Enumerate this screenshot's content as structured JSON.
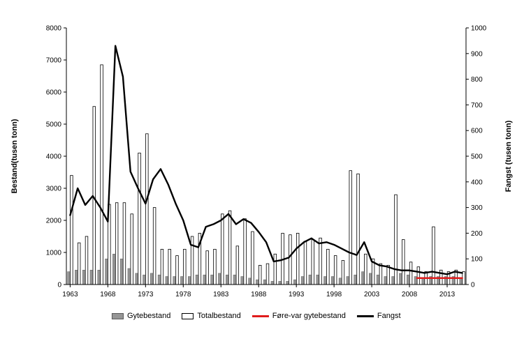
{
  "chart_data": {
    "type": "bar+line",
    "title": "",
    "ylabel_left": "Bestand(tusen tonn)",
    "ylabel_right": "Fangst (tusen tonn)",
    "left_axis": {
      "min": 0,
      "max": 8000,
      "step": 1000
    },
    "right_axis": {
      "min": 0,
      "max": 1000,
      "step": 100
    },
    "grid": false,
    "legend_position": "bottom",
    "x_years": [
      1963,
      1964,
      1965,
      1966,
      1967,
      1968,
      1969,
      1970,
      1971,
      1972,
      1973,
      1974,
      1975,
      1976,
      1977,
      1978,
      1979,
      1980,
      1981,
      1982,
      1983,
      1984,
      1985,
      1986,
      1987,
      1988,
      1989,
      1990,
      1991,
      1992,
      1993,
      1994,
      1995,
      1996,
      1997,
      1998,
      1999,
      2000,
      2001,
      2002,
      2003,
      2004,
      2005,
      2006,
      2007,
      2008,
      2009,
      2010,
      2011,
      2012,
      2013,
      2014,
      2015
    ],
    "x_ticks": [
      1963,
      1968,
      1973,
      1978,
      1983,
      1988,
      1993,
      1998,
      2003,
      2008,
      2013
    ],
    "series": [
      {
        "name": "Gytebestand",
        "type": "bar",
        "axis": "left",
        "color": "#969696",
        "border": "#5a5a5a",
        "values": [
          400,
          450,
          450,
          450,
          450,
          800,
          950,
          800,
          500,
          350,
          300,
          350,
          300,
          250,
          250,
          250,
          250,
          300,
          300,
          300,
          350,
          300,
          300,
          250,
          200,
          150,
          150,
          100,
          100,
          100,
          150,
          250,
          300,
          300,
          250,
          250,
          200,
          250,
          300,
          400,
          350,
          300,
          250,
          250,
          350,
          300,
          250,
          200,
          250,
          250,
          250,
          250,
          200
        ]
      },
      {
        "name": "Totalbestand",
        "type": "bar",
        "axis": "left",
        "color": "#ffffff",
        "border": "#000000",
        "values": [
          3400,
          1300,
          1500,
          5550,
          6850,
          2500,
          2550,
          2550,
          2200,
          4100,
          4700,
          2400,
          1100,
          1100,
          900,
          1100,
          1500,
          1600,
          1050,
          1100,
          2200,
          2300,
          1200,
          2050,
          1650,
          600,
          650,
          950,
          1600,
          1550,
          1600,
          1350,
          1400,
          1450,
          1100,
          900,
          750,
          3550,
          3450,
          950,
          800,
          650,
          600,
          2800,
          1400,
          700,
          550,
          400,
          1800,
          450,
          400,
          450,
          400
        ]
      },
      {
        "name": "Føre-var gytebestand",
        "type": "line",
        "axis": "left",
        "color": "#e01b1b",
        "values": [
          null,
          null,
          null,
          null,
          null,
          null,
          null,
          null,
          null,
          null,
          null,
          null,
          null,
          null,
          null,
          null,
          null,
          null,
          null,
          null,
          null,
          null,
          null,
          null,
          null,
          null,
          null,
          null,
          null,
          null,
          null,
          null,
          null,
          null,
          null,
          null,
          null,
          null,
          null,
          null,
          null,
          null,
          null,
          null,
          null,
          null,
          200,
          200,
          200,
          200,
          200,
          200,
          200
        ]
      },
      {
        "name": "Fangst",
        "type": "line",
        "axis": "right",
        "color": "#000000",
        "values": [
          270,
          375,
          310,
          345,
          300,
          245,
          930,
          810,
          440,
          375,
          315,
          410,
          450,
          390,
          315,
          250,
          155,
          145,
          225,
          235,
          250,
          275,
          235,
          255,
          240,
          205,
          165,
          90,
          95,
          105,
          140,
          165,
          180,
          160,
          165,
          155,
          140,
          125,
          115,
          165,
          90,
          75,
          70,
          60,
          55,
          55,
          50,
          45,
          50,
          45,
          40,
          50,
          45
        ]
      }
    ]
  }
}
